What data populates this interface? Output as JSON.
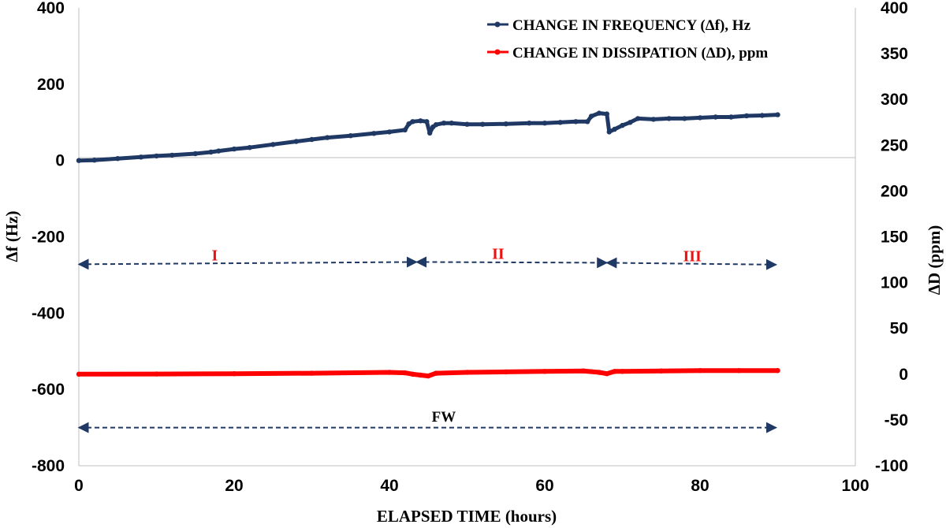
{
  "chart_data": {
    "type": "line",
    "xlabel": "ELAPSED TIME  (hours)",
    "ylabel": "Δf (Hz)",
    "ylabel_right": "ΔD (ppm)",
    "xlim": [
      0,
      100
    ],
    "ylim": [
      -800,
      400
    ],
    "ylim_right": [
      -100,
      400
    ],
    "x_ticks": [
      0,
      20,
      40,
      60,
      80,
      100
    ],
    "y_ticks": [
      400,
      200,
      0,
      -200,
      -400,
      -600,
      -800
    ],
    "y_ticks_right": [
      400,
      350,
      300,
      250,
      200,
      150,
      100,
      50,
      0,
      -50,
      -100
    ],
    "grid": false,
    "legend_position": "top-right",
    "series": [
      {
        "name": "CHANGE IN FREQUENCY (Δf), Hz",
        "axis": "left",
        "color": "#1f3864",
        "x": [
          0,
          2,
          5,
          8,
          10,
          12,
          15,
          17,
          18,
          20,
          22,
          25,
          28,
          30,
          32,
          35,
          38,
          40,
          42,
          42.5,
          43,
          44,
          44.8,
          45.2,
          45.6,
          46,
          47,
          48,
          50,
          52,
          55,
          58,
          60,
          62,
          64,
          65.5,
          66,
          67,
          68,
          68.3,
          69,
          70,
          71,
          72,
          74,
          76,
          78,
          80,
          82,
          84,
          86,
          88,
          90
        ],
        "y": [
          0,
          1,
          5,
          9,
          12,
          14,
          18,
          22,
          25,
          30,
          34,
          42,
          50,
          55,
          60,
          65,
          71,
          75,
          80,
          96,
          102,
          104,
          102,
          72,
          88,
          94,
          98,
          98,
          95,
          95,
          96,
          98,
          98,
          100,
          102,
          102,
          116,
          124,
          122,
          75,
          82,
          92,
          100,
          110,
          108,
          110,
          110,
          112,
          114,
          114,
          117,
          118,
          120
        ]
      },
      {
        "name": "CHANGE IN DISSIPATION (ΔD), ppm",
        "axis": "right",
        "color": "#ff0000",
        "x": [
          0,
          10,
          20,
          30,
          40,
          42,
          43,
          44,
          45,
          46,
          50,
          55,
          60,
          65,
          67,
          68,
          69,
          70,
          75,
          80,
          85,
          90
        ],
        "y": [
          0,
          0.2,
          0.5,
          1,
          2,
          1.5,
          0,
          -1,
          -2,
          1,
          2,
          2.5,
          3,
          3.5,
          2,
          0.5,
          3,
          3,
          3.5,
          4,
          4,
          4
        ]
      }
    ],
    "annotations": {
      "regions": [
        {
          "label": "I",
          "x_start": 0,
          "x_end": 43.5,
          "y_left": -272,
          "y_right": -266,
          "label_x": 17.5,
          "label_y": -262
        },
        {
          "label": "II",
          "x_start": 43.5,
          "x_end": 68,
          "y_left": -266,
          "y_right": -268,
          "label_x": 54,
          "label_y": -258
        },
        {
          "label": "III",
          "x_start": 68,
          "x_end": 89.8,
          "y_left": -268,
          "y_right": -273,
          "label_x": 79,
          "label_y": -264
        }
      ],
      "region_color": "#ee1111",
      "fw": {
        "label": "FW",
        "x_start": 0,
        "x_end": 89.8,
        "y": -700,
        "label_x": 47,
        "label_y": -684
      }
    }
  }
}
